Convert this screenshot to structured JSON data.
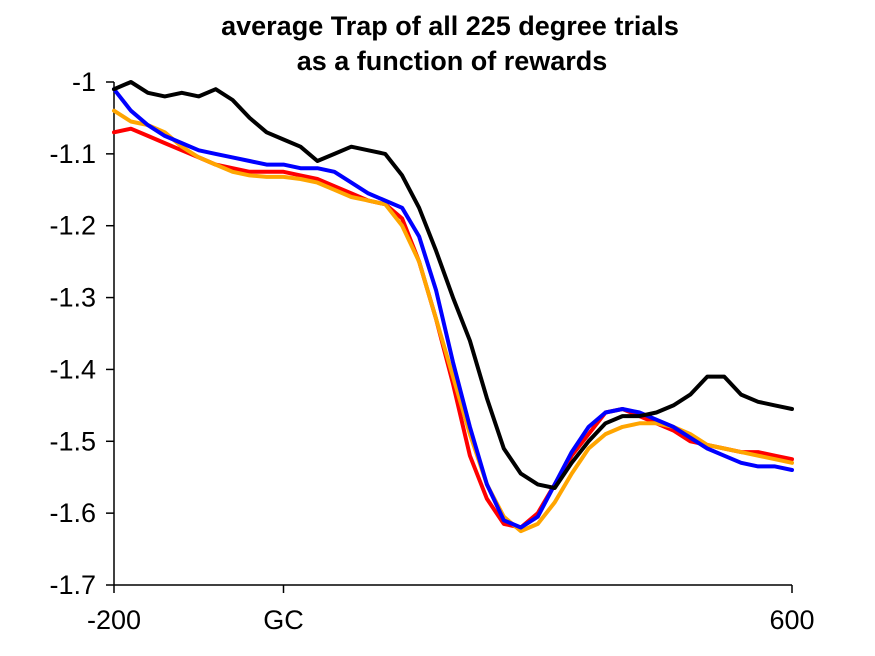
{
  "chart_data": {
    "type": "line",
    "title": "average Trap of all 225 degree trials",
    "subtitle": "as a function of rewards",
    "xlabel": "",
    "ylabel": "",
    "xlim": [
      -200,
      600
    ],
    "ylim": [
      -1.7,
      -1.0
    ],
    "x_ticks": [
      {
        "value": -200,
        "label": "-200"
      },
      {
        "value": 0,
        "label": "GC"
      },
      {
        "value": 600,
        "label": "600"
      }
    ],
    "y_ticks": [
      {
        "value": -1.0,
        "label": "-1"
      },
      {
        "value": -1.1,
        "label": "-1.1"
      },
      {
        "value": -1.2,
        "label": "-1.2"
      },
      {
        "value": -1.3,
        "label": "-1.3"
      },
      {
        "value": -1.4,
        "label": "-1.4"
      },
      {
        "value": -1.5,
        "label": "-1.5"
      },
      {
        "value": -1.6,
        "label": "-1.6"
      },
      {
        "value": -1.7,
        "label": "-1.7"
      }
    ],
    "grid": false,
    "legend": "none",
    "series": [
      {
        "color": "#ff0000",
        "x": [
          -200,
          -180,
          -160,
          -140,
          -120,
          -100,
          -80,
          -60,
          -40,
          -20,
          0,
          20,
          40,
          60,
          80,
          100,
          120,
          140,
          160,
          180,
          200,
          220,
          240,
          260,
          280,
          300,
          320,
          340,
          360,
          380,
          400,
          420,
          440,
          460,
          480,
          500,
          520,
          540,
          560,
          580,
          600
        ],
        "y": [
          -1.07,
          -1.065,
          -1.075,
          -1.085,
          -1.095,
          -1.105,
          -1.115,
          -1.12,
          -1.125,
          -1.125,
          -1.125,
          -1.13,
          -1.135,
          -1.145,
          -1.155,
          -1.165,
          -1.17,
          -1.19,
          -1.25,
          -1.33,
          -1.42,
          -1.52,
          -1.58,
          -1.615,
          -1.62,
          -1.6,
          -1.56,
          -1.52,
          -1.49,
          -1.46,
          -1.455,
          -1.465,
          -1.475,
          -1.485,
          -1.5,
          -1.505,
          -1.51,
          -1.515,
          -1.515,
          -1.52,
          -1.525
        ]
      },
      {
        "color": "#ffa500",
        "x": [
          -200,
          -180,
          -160,
          -140,
          -120,
          -100,
          -80,
          -60,
          -40,
          -20,
          0,
          20,
          40,
          60,
          80,
          100,
          120,
          140,
          160,
          180,
          200,
          220,
          240,
          260,
          280,
          300,
          320,
          340,
          360,
          380,
          400,
          420,
          440,
          460,
          480,
          500,
          520,
          540,
          560,
          580,
          600
        ],
        "y": [
          -1.04,
          -1.055,
          -1.06,
          -1.07,
          -1.09,
          -1.105,
          -1.115,
          -1.125,
          -1.13,
          -1.132,
          -1.132,
          -1.135,
          -1.14,
          -1.15,
          -1.16,
          -1.165,
          -1.17,
          -1.2,
          -1.25,
          -1.33,
          -1.41,
          -1.49,
          -1.56,
          -1.605,
          -1.625,
          -1.615,
          -1.585,
          -1.545,
          -1.51,
          -1.49,
          -1.48,
          -1.475,
          -1.475,
          -1.48,
          -1.49,
          -1.505,
          -1.51,
          -1.515,
          -1.52,
          -1.525,
          -1.53
        ]
      },
      {
        "color": "#0000ff",
        "x": [
          -200,
          -180,
          -160,
          -140,
          -120,
          -100,
          -80,
          -60,
          -40,
          -20,
          0,
          20,
          40,
          60,
          80,
          100,
          120,
          140,
          160,
          180,
          200,
          220,
          240,
          260,
          280,
          300,
          320,
          340,
          360,
          380,
          400,
          420,
          440,
          460,
          480,
          500,
          520,
          540,
          560,
          580,
          600
        ],
        "y": [
          -1.01,
          -1.04,
          -1.06,
          -1.075,
          -1.085,
          -1.095,
          -1.1,
          -1.105,
          -1.11,
          -1.115,
          -1.115,
          -1.12,
          -1.12,
          -1.125,
          -1.14,
          -1.155,
          -1.165,
          -1.175,
          -1.215,
          -1.29,
          -1.39,
          -1.48,
          -1.56,
          -1.61,
          -1.62,
          -1.605,
          -1.56,
          -1.515,
          -1.48,
          -1.46,
          -1.455,
          -1.46,
          -1.47,
          -1.48,
          -1.495,
          -1.51,
          -1.52,
          -1.53,
          -1.535,
          -1.535,
          -1.54
        ]
      },
      {
        "color": "#000000",
        "x": [
          -200,
          -180,
          -160,
          -140,
          -120,
          -100,
          -80,
          -60,
          -40,
          -20,
          0,
          20,
          40,
          60,
          80,
          100,
          120,
          140,
          160,
          180,
          200,
          220,
          240,
          260,
          280,
          300,
          320,
          340,
          360,
          380,
          400,
          420,
          440,
          460,
          480,
          500,
          520,
          540,
          560,
          580,
          600
        ],
        "y": [
          -1.01,
          -1.0,
          -1.015,
          -1.02,
          -1.015,
          -1.02,
          -1.01,
          -1.025,
          -1.05,
          -1.07,
          -1.08,
          -1.09,
          -1.11,
          -1.1,
          -1.09,
          -1.095,
          -1.1,
          -1.13,
          -1.175,
          -1.235,
          -1.3,
          -1.36,
          -1.44,
          -1.51,
          -1.545,
          -1.56,
          -1.565,
          -1.53,
          -1.5,
          -1.475,
          -1.465,
          -1.465,
          -1.46,
          -1.45,
          -1.435,
          -1.41,
          -1.41,
          -1.435,
          -1.445,
          -1.45,
          -1.455
        ]
      }
    ]
  }
}
